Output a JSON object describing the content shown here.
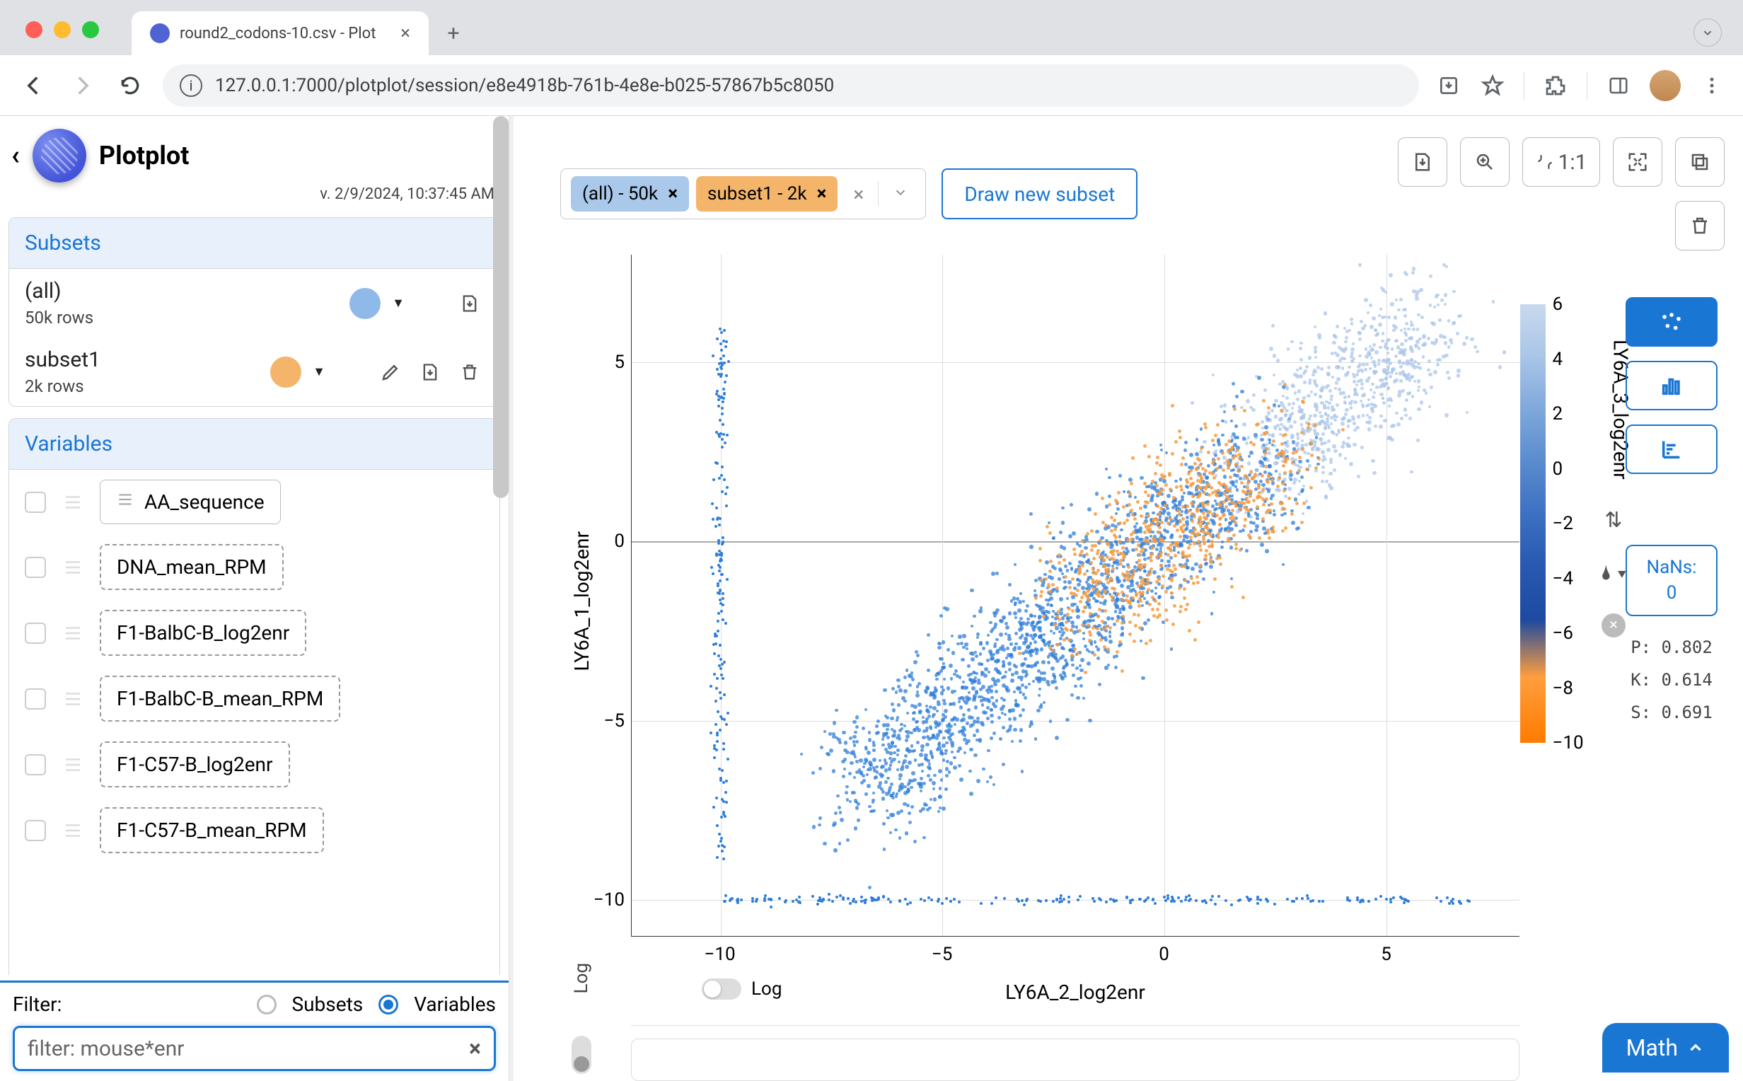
{
  "browser": {
    "tab_title": "round2_codons-10.csv - Plot",
    "url": "127.0.0.1:7000/plotplot/session/e8e4918b-761b-4e8e-b025-57867b5c8050"
  },
  "app": {
    "title": "Plotplot",
    "version": "v. 2/9/2024, 10:37:45 AM"
  },
  "sidebar": {
    "subsets_header": "Subsets",
    "variables_header": "Variables",
    "subsets": [
      {
        "name": "(all)",
        "rows": "50k rows",
        "color": "#8fb9e8"
      },
      {
        "name": "subset1",
        "rows": "2k rows",
        "color": "#f4b56a"
      }
    ],
    "variables": [
      {
        "label": "AA_sequence",
        "dashed": false
      },
      {
        "label": "DNA_mean_RPM",
        "dashed": true
      },
      {
        "label": "F1-BalbC-B_log2enr",
        "dashed": true
      },
      {
        "label": "F1-BalbC-B_mean_RPM",
        "dashed": true
      },
      {
        "label": "F1-C57-B_log2enr",
        "dashed": true
      },
      {
        "label": "F1-C57-B_mean_RPM",
        "dashed": true
      }
    ]
  },
  "filter": {
    "label": "Filter:",
    "opt_subsets": "Subsets",
    "opt_variables": "Variables",
    "selected": "variables",
    "value": "filter: mouse*enr"
  },
  "subset_chips": [
    {
      "label": "(all) - 50k",
      "bg": "#a9c8ea"
    },
    {
      "label": "subset1 - 2k",
      "bg": "#f4b56a"
    }
  ],
  "draw_subset_label": "Draw new subset",
  "toolbar": {
    "ratio_label": "1:1"
  },
  "plot": {
    "type": "scatter",
    "x_label": "LY6A_2_log2enr",
    "y_label": "LY6A_1_log2enr",
    "color_label": "LY6A_3_log2enr",
    "log_label": "Log",
    "xlim": [
      -12,
      8
    ],
    "ylim": [
      -11,
      8
    ],
    "x_ticks": [
      -10,
      -5,
      0,
      5
    ],
    "y_ticks": [
      -10,
      -5,
      0,
      5
    ],
    "main_color": "#2f7ed8",
    "subset_color": "#f49b3f",
    "light_color": "#a9c5e8",
    "colorbar": {
      "ticks": [
        6,
        4,
        2,
        0,
        -2,
        -4,
        -6,
        -8,
        -10
      ],
      "range": [
        -10,
        6
      ]
    }
  },
  "right_panel": {
    "nans_label": "NaNs:",
    "nans_value": "0",
    "stats": [
      {
        "k": "P",
        "v": "0.802"
      },
      {
        "k": "K",
        "v": "0.614"
      },
      {
        "k": "S",
        "v": "0.691"
      }
    ]
  },
  "math_label": "Math"
}
